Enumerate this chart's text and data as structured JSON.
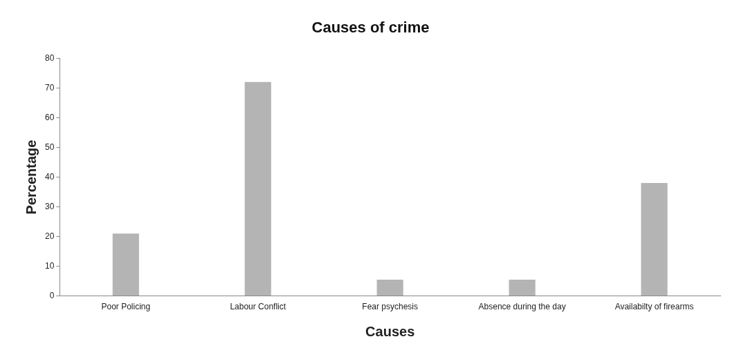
{
  "chart_data": {
    "type": "bar",
    "title": "Causes of crime",
    "xlabel": "Causes",
    "ylabel": "Percentage",
    "categories": [
      "Poor Policing",
      "Labour Conflict",
      "Fear psychesis",
      "Absence during the day",
      "Availabilty of firearms"
    ],
    "values": [
      21,
      72,
      5.5,
      5.5,
      38
    ],
    "color": "#b4b4b4",
    "ylim": [
      0,
      80
    ],
    "yticks": [
      0,
      10,
      20,
      30,
      40,
      50,
      60,
      70,
      80
    ],
    "grid": false,
    "legend": false
  }
}
